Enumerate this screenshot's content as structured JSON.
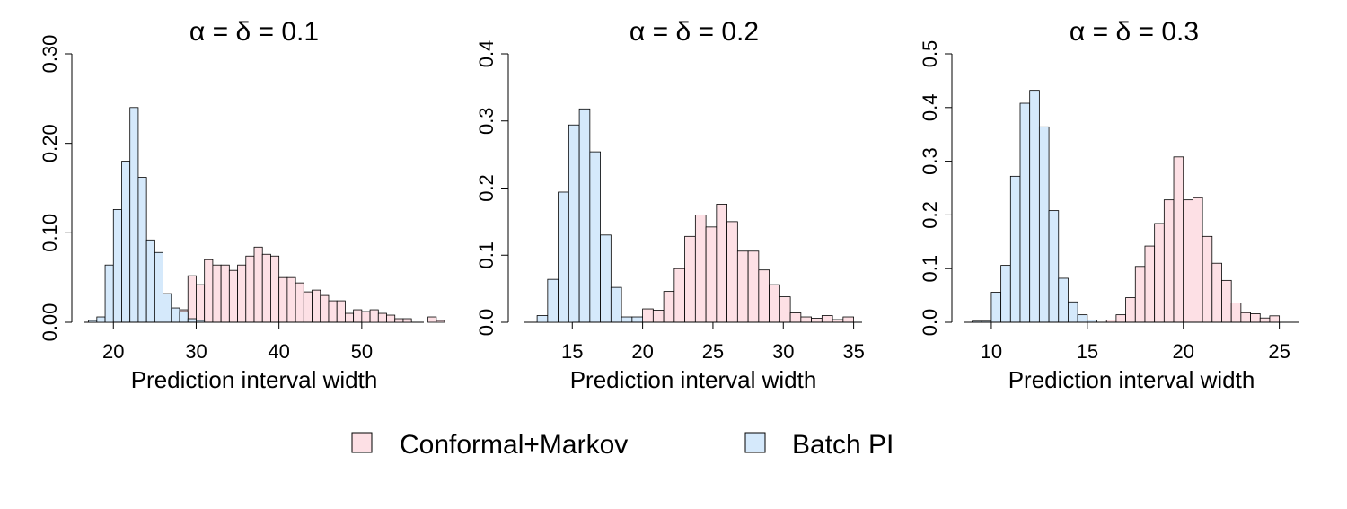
{
  "colors": {
    "conformal_fill": "#fde0e5",
    "batch_fill": "#d5e9fb",
    "bar_stroke": "#000000",
    "axis": "#000000"
  },
  "legend": {
    "items": [
      {
        "label": "Conformal+Markov",
        "color": "#fde0e5"
      },
      {
        "label": "Batch PI",
        "color": "#d5e9fb"
      }
    ]
  },
  "chart_data": [
    {
      "type": "histogram",
      "title": "α = δ = 0.1",
      "title_parts": {
        "alpha": "α",
        "delta": "δ",
        "value": "0.1"
      },
      "xlabel": "Prediction interval width",
      "ylabel": "",
      "xlim": [
        16.5,
        57.5
      ],
      "ylim": [
        0,
        0.3
      ],
      "xticks": [
        20,
        30,
        40,
        50
      ],
      "yticks": [
        0.0,
        0.1,
        0.2,
        0.3
      ],
      "ytick_labels": [
        "0.00",
        "0.10",
        "0.20",
        "0.30"
      ],
      "bin_width": 1,
      "series": [
        {
          "name": "Batch PI",
          "bin_start": 17,
          "values": [
            0.002,
            0.006,
            0.064,
            0.126,
            0.18,
            0.24,
            0.162,
            0.092,
            0.078,
            0.032,
            0.016,
            0.012,
            0.004,
            0.002
          ]
        },
        {
          "name": "Conformal+Markov",
          "bin_start": 21,
          "values": [
            0.002,
            0.002,
            0.002,
            0.002,
            0.002,
            0.002,
            0.004,
            0.014,
            0.052,
            0.042,
            0.07,
            0.064,
            0.064,
            0.058,
            0.064,
            0.074,
            0.084,
            0.076,
            0.074,
            0.05,
            0.05,
            0.044,
            0.034,
            0.036,
            0.03,
            0.024,
            0.024,
            0.01,
            0.014,
            0.012,
            0.014,
            0.01,
            0.008,
            0.004,
            0.004,
            0.0,
            0.0,
            0.006,
            0.002
          ]
        }
      ]
    },
    {
      "type": "histogram",
      "title": "α = δ = 0.2",
      "title_parts": {
        "alpha": "α",
        "delta": "δ",
        "value": "0.2"
      },
      "xlabel": "Prediction interval width",
      "ylabel": "",
      "xlim": [
        11.6,
        35.6
      ],
      "ylim": [
        0,
        0.4
      ],
      "xticks": [
        15,
        20,
        25,
        30,
        35
      ],
      "yticks": [
        0.0,
        0.1,
        0.2,
        0.3,
        0.4
      ],
      "ytick_labels": [
        "0.0",
        "0.1",
        "0.2",
        "0.3",
        "0.4"
      ],
      "bin_width": 0.75,
      "series": [
        {
          "name": "Batch PI",
          "bin_start": 12.5,
          "values": [
            0.01,
            0.064,
            0.194,
            0.294,
            0.318,
            0.254,
            0.13,
            0.052,
            0.008,
            0.008
          ]
        },
        {
          "name": "Conformal+Markov",
          "bin_start": 20,
          "values": [
            0.02,
            0.018,
            0.046,
            0.08,
            0.128,
            0.16,
            0.142,
            0.176,
            0.15,
            0.106,
            0.106,
            0.078,
            0.056,
            0.038,
            0.014,
            0.008,
            0.006,
            0.01,
            0.004,
            0.008
          ]
        }
      ]
    },
    {
      "type": "histogram",
      "title": "α = δ = 0.3",
      "title_parts": {
        "alpha": "α",
        "delta": "δ",
        "value": "0.3"
      },
      "xlabel": "Prediction interval width",
      "ylabel": "",
      "xlim": [
        8.6,
        26.0
      ],
      "ylim": [
        0,
        0.5
      ],
      "xticks": [
        10,
        15,
        20,
        25
      ],
      "yticks": [
        0.0,
        0.1,
        0.2,
        0.3,
        0.4,
        0.5
      ],
      "ytick_labels": [
        "0.0",
        "0.1",
        "0.2",
        "0.3",
        "0.4",
        "0.5"
      ],
      "bin_width": 0.5,
      "series": [
        {
          "name": "Batch PI",
          "bin_start": 9,
          "values": [
            0.002,
            0.002,
            0.056,
            0.106,
            0.272,
            0.408,
            0.432,
            0.364,
            0.208,
            0.082,
            0.038,
            0.014,
            0.004
          ]
        },
        {
          "name": "Conformal+Markov",
          "bin_start": 16,
          "values": [
            0.004,
            0.014,
            0.046,
            0.104,
            0.142,
            0.184,
            0.228,
            0.308,
            0.228,
            0.232,
            0.16,
            0.11,
            0.078,
            0.036,
            0.018,
            0.016,
            0.008,
            0.012
          ]
        }
      ]
    }
  ]
}
